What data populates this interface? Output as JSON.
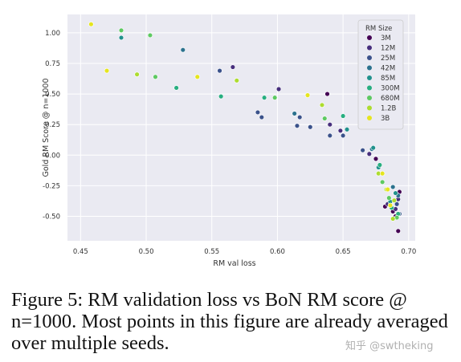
{
  "chart_data": {
    "type": "scatter",
    "title": "",
    "xlabel": "RM val loss",
    "ylabel": "Gold RM Score @ n=1000",
    "xlim": [
      0.44,
      0.705
    ],
    "ylim": [
      -0.7,
      1.15
    ],
    "xticks": [
      0.45,
      0.5,
      0.55,
      0.6,
      0.65,
      0.7
    ],
    "xtick_labels": [
      "0.45",
      "0.50",
      "0.55",
      "0.60",
      "0.65",
      "0.70"
    ],
    "yticks": [
      -0.5,
      -0.25,
      0.0,
      0.25,
      0.5,
      0.75,
      1.0
    ],
    "ytick_labels": [
      "-0.50",
      "-0.25",
      "0.00",
      "0.25",
      "0.50",
      "0.75",
      "1.00"
    ],
    "grid": true,
    "legend_title": "RM Size",
    "legend_position": "top-right",
    "series": [
      {
        "name": "3M",
        "color": "#440154",
        "points": [
          [
            0.638,
            0.5
          ],
          [
            0.675,
            -0.03
          ],
          [
            0.682,
            -0.42
          ],
          [
            0.686,
            -0.38
          ],
          [
            0.688,
            -0.46
          ],
          [
            0.69,
            -0.5
          ],
          [
            0.692,
            -0.62
          ],
          [
            0.693,
            -0.3
          ]
        ]
      },
      {
        "name": "12M",
        "color": "#472f7d",
        "points": [
          [
            0.566,
            0.72
          ],
          [
            0.601,
            0.54
          ],
          [
            0.64,
            0.25
          ],
          [
            0.648,
            0.2
          ],
          [
            0.67,
            0.01
          ],
          [
            0.684,
            -0.4
          ],
          [
            0.69,
            -0.44
          ],
          [
            0.692,
            -0.36
          ]
        ]
      },
      {
        "name": "25M",
        "color": "#3b528b",
        "points": [
          [
            0.556,
            0.69
          ],
          [
            0.585,
            0.35
          ],
          [
            0.588,
            0.31
          ],
          [
            0.617,
            0.31
          ],
          [
            0.615,
            0.24
          ],
          [
            0.625,
            0.23
          ],
          [
            0.64,
            0.16
          ],
          [
            0.65,
            0.16
          ],
          [
            0.665,
            0.04
          ],
          [
            0.691,
            -0.4
          ],
          [
            0.693,
            -0.48
          ]
        ]
      },
      {
        "name": "42M",
        "color": "#2c728e",
        "points": [
          [
            0.528,
            0.86
          ],
          [
            0.613,
            0.34
          ],
          [
            0.672,
            0.05
          ],
          [
            0.688,
            -0.26
          ],
          [
            0.692,
            -0.33
          ]
        ]
      },
      {
        "name": "85M",
        "color": "#21918c",
        "points": [
          [
            0.481,
            0.96
          ],
          [
            0.653,
            0.21
          ],
          [
            0.673,
            0.06
          ],
          [
            0.677,
            -0.1
          ],
          [
            0.686,
            -0.38
          ],
          [
            0.69,
            -0.31
          ]
        ]
      },
      {
        "name": "300M",
        "color": "#28ae80",
        "points": [
          [
            0.523,
            0.55
          ],
          [
            0.557,
            0.48
          ],
          [
            0.59,
            0.47
          ],
          [
            0.65,
            0.32
          ],
          [
            0.678,
            -0.08
          ],
          [
            0.687,
            -0.43
          ],
          [
            0.692,
            -0.48
          ]
        ]
      },
      {
        "name": "680M",
        "color": "#5ec962",
        "points": [
          [
            0.481,
            1.02
          ],
          [
            0.503,
            0.98
          ],
          [
            0.507,
            0.64
          ],
          [
            0.598,
            0.47
          ],
          [
            0.636,
            0.3
          ],
          [
            0.68,
            -0.22
          ],
          [
            0.685,
            -0.35
          ],
          [
            0.691,
            -0.51
          ]
        ]
      },
      {
        "name": "1.2B",
        "color": "#addc30",
        "points": [
          [
            0.493,
            0.66
          ],
          [
            0.569,
            0.61
          ],
          [
            0.634,
            0.41
          ],
          [
            0.677,
            -0.15
          ],
          [
            0.683,
            -0.28
          ],
          [
            0.689,
            -0.37
          ],
          [
            0.688,
            -0.52
          ]
        ]
      },
      {
        "name": "3B",
        "color": "#e5e51f",
        "points": [
          [
            0.458,
            1.07
          ],
          [
            0.47,
            0.69
          ],
          [
            0.539,
            0.64
          ],
          [
            0.623,
            0.49
          ],
          [
            0.68,
            -0.15
          ],
          [
            0.684,
            -0.28
          ],
          [
            0.686,
            -0.41
          ]
        ]
      }
    ]
  },
  "caption": {
    "text": "Figure 5: RM validation loss vs BoN RM score @ n=1000. Most points in this figure are already averaged over multiple seeds."
  },
  "watermark": {
    "text": "知乎 @swtheking"
  },
  "colors": {
    "plot_background": "#eaeaf2",
    "grid": "#ffffff",
    "marker_edge": "#ffffff"
  }
}
